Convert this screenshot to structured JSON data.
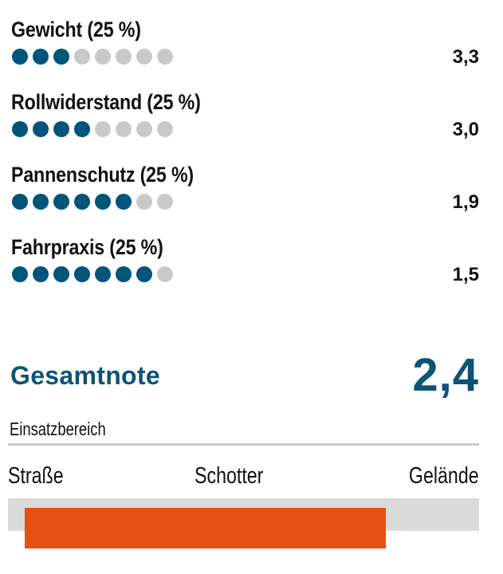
{
  "colors": {
    "dot_filled": "#00557a",
    "dot_empty": "#c8c9c9",
    "total_text": "#0c5377",
    "range_bar": "#e55113",
    "range_track": "#dadada",
    "divider": "#c8c8c8"
  },
  "criteria": [
    {
      "label": "Gewicht (25 %)",
      "filled_dots": 3,
      "total_dots": 8,
      "score": "3,3"
    },
    {
      "label": "Rollwiderstand (25 %)",
      "filled_dots": 4,
      "total_dots": 8,
      "score": "3,0"
    },
    {
      "label": "Pannenschutz  (25 %)",
      "filled_dots": 6,
      "total_dots": 8,
      "score": "1,9"
    },
    {
      "label": "Fahrpraxis  (25 %)",
      "filled_dots": 7,
      "total_dots": 8,
      "score": "1,5"
    }
  ],
  "total": {
    "label": "Gesamtnote",
    "value": "2,4"
  },
  "usage_range": {
    "title": "Einsatzbereich",
    "labels": [
      "Straße",
      "Schotter",
      "Gelände"
    ],
    "bar_start_pct": 3.6,
    "bar_end_pct": 80.2
  }
}
